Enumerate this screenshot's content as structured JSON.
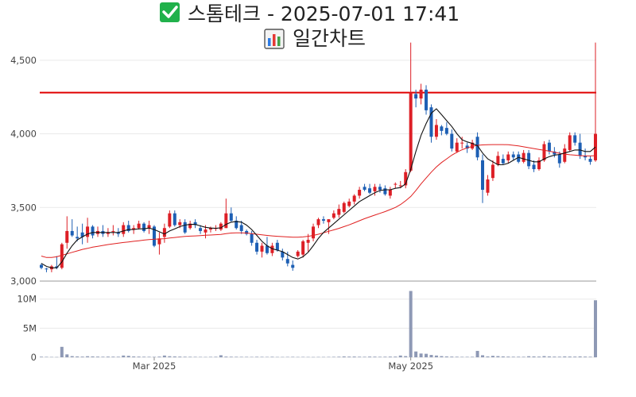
{
  "header": {
    "title_icon": "check-box-icon",
    "title": "스톰테크 - 2025-07-01 17:41",
    "subtitle_icon": "bar-chart-icon",
    "subtitle": "일간차트"
  },
  "colors": {
    "up": "#dd1f26",
    "down": "#1d5fb4",
    "ma_short": "#111111",
    "ma_long": "#e02020",
    "ref_line": "#e00000",
    "volume": "#8e99b5",
    "grid": "#e9e9e9",
    "title_check_bg": "#21b14b"
  },
  "chart_data": [
    {
      "type": "candlestick",
      "ylim": [
        3000,
        4650
      ],
      "yticks": [
        3000,
        3500,
        4000,
        4500
      ],
      "ytick_labels": [
        "3,000",
        "3,500",
        "4,000",
        "4,500"
      ],
      "reference_line": 4280,
      "candles": [
        [
          3110,
          3120,
          3080,
          3090
        ],
        [
          3085,
          3090,
          3060,
          3080
        ],
        [
          3080,
          3110,
          3060,
          3100
        ],
        [
          3100,
          3170,
          3080,
          3090
        ],
        [
          3090,
          3260,
          3080,
          3250
        ],
        [
          3260,
          3440,
          3220,
          3340
        ],
        [
          3340,
          3420,
          3300,
          3310
        ],
        [
          3300,
          3370,
          3270,
          3290
        ],
        [
          3330,
          3390,
          3250,
          3300
        ],
        [
          3300,
          3430,
          3260,
          3370
        ],
        [
          3370,
          3380,
          3290,
          3310
        ],
        [
          3320,
          3370,
          3300,
          3340
        ],
        [
          3340,
          3380,
          3300,
          3320
        ],
        [
          3320,
          3360,
          3300,
          3330
        ],
        [
          3340,
          3380,
          3310,
          3340
        ],
        [
          3330,
          3360,
          3300,
          3320
        ],
        [
          3320,
          3400,
          3300,
          3380
        ],
        [
          3380,
          3410,
          3330,
          3340
        ],
        [
          3350,
          3380,
          3320,
          3360
        ],
        [
          3360,
          3410,
          3350,
          3390
        ],
        [
          3390,
          3400,
          3330,
          3340
        ],
        [
          3360,
          3410,
          3320,
          3380
        ],
        [
          3370,
          3380,
          3230,
          3240
        ],
        [
          3250,
          3330,
          3180,
          3290
        ],
        [
          3300,
          3390,
          3260,
          3360
        ],
        [
          3370,
          3480,
          3360,
          3460
        ],
        [
          3460,
          3480,
          3370,
          3380
        ],
        [
          3380,
          3420,
          3360,
          3400
        ],
        [
          3400,
          3420,
          3320,
          3330
        ],
        [
          3360,
          3410,
          3350,
          3390
        ],
        [
          3400,
          3420,
          3360,
          3380
        ],
        [
          3360,
          3380,
          3320,
          3340
        ],
        [
          3330,
          3380,
          3290,
          3350
        ],
        [
          3350,
          3370,
          3330,
          3360
        ],
        [
          3360,
          3380,
          3340,
          3360
        ],
        [
          3350,
          3400,
          3340,
          3390
        ],
        [
          3360,
          3560,
          3360,
          3460
        ],
        [
          3460,
          3500,
          3400,
          3410
        ],
        [
          3410,
          3440,
          3350,
          3360
        ],
        [
          3380,
          3410,
          3320,
          3340
        ],
        [
          3340,
          3350,
          3310,
          3320
        ],
        [
          3320,
          3340,
          3240,
          3260
        ],
        [
          3260,
          3280,
          3180,
          3200
        ],
        [
          3200,
          3260,
          3160,
          3240
        ],
        [
          3240,
          3300,
          3180,
          3190
        ],
        [
          3190,
          3260,
          3170,
          3240
        ],
        [
          3260,
          3280,
          3200,
          3210
        ],
        [
          3200,
          3220,
          3140,
          3160
        ],
        [
          3150,
          3200,
          3100,
          3120
        ],
        [
          3110,
          3140,
          3070,
          3090
        ],
        [
          3170,
          3210,
          3160,
          3200
        ],
        [
          3180,
          3280,
          3160,
          3270
        ],
        [
          3260,
          3320,
          3200,
          3280
        ],
        [
          3290,
          3390,
          3270,
          3370
        ],
        [
          3380,
          3430,
          3360,
          3420
        ],
        [
          3420,
          3440,
          3390,
          3410
        ],
        [
          3400,
          3420,
          3320,
          3420
        ],
        [
          3430,
          3480,
          3420,
          3460
        ],
        [
          3450,
          3520,
          3430,
          3490
        ],
        [
          3470,
          3540,
          3460,
          3530
        ],
        [
          3510,
          3560,
          3500,
          3540
        ],
        [
          3540,
          3590,
          3520,
          3580
        ],
        [
          3580,
          3640,
          3560,
          3620
        ],
        [
          3640,
          3660,
          3610,
          3620
        ],
        [
          3630,
          3660,
          3590,
          3600
        ],
        [
          3610,
          3660,
          3580,
          3640
        ],
        [
          3640,
          3660,
          3600,
          3620
        ],
        [
          3630,
          3650,
          3580,
          3590
        ],
        [
          3580,
          3640,
          3560,
          3620
        ],
        [
          3660,
          3670,
          3630,
          3660
        ],
        [
          3650,
          3680,
          3630,
          3650
        ],
        [
          3650,
          3760,
          3630,
          3740
        ],
        [
          3750,
          4620,
          3740,
          4280
        ],
        [
          4270,
          4300,
          4180,
          4240
        ],
        [
          4240,
          4340,
          4200,
          4300
        ],
        [
          4300,
          4330,
          4130,
          4160
        ],
        [
          4180,
          4200,
          3940,
          3980
        ],
        [
          3980,
          4100,
          3960,
          4060
        ],
        [
          4050,
          4060,
          3990,
          4020
        ],
        [
          4040,
          4080,
          3990,
          4000
        ],
        [
          4000,
          4030,
          3880,
          3900
        ],
        [
          3880,
          3970,
          3870,
          3940
        ],
        [
          3940,
          3980,
          3900,
          3940
        ],
        [
          3920,
          3940,
          3870,
          3900
        ],
        [
          3900,
          3960,
          3890,
          3940
        ],
        [
          3980,
          4010,
          3820,
          3840
        ],
        [
          3820,
          3860,
          3530,
          3620
        ],
        [
          3600,
          3720,
          3580,
          3690
        ],
        [
          3700,
          3820,
          3680,
          3790
        ],
        [
          3790,
          3880,
          3780,
          3850
        ],
        [
          3830,
          3860,
          3790,
          3800
        ],
        [
          3820,
          3880,
          3800,
          3860
        ],
        [
          3860,
          3880,
          3820,
          3840
        ],
        [
          3860,
          3880,
          3800,
          3810
        ],
        [
          3810,
          3890,
          3800,
          3870
        ],
        [
          3870,
          3890,
          3760,
          3780
        ],
        [
          3790,
          3820,
          3740,
          3760
        ],
        [
          3760,
          3840,
          3750,
          3820
        ],
        [
          3820,
          3950,
          3810,
          3930
        ],
        [
          3940,
          3960,
          3860,
          3880
        ],
        [
          3880,
          3910,
          3840,
          3860
        ],
        [
          3860,
          3880,
          3770,
          3800
        ],
        [
          3810,
          3930,
          3800,
          3900
        ],
        [
          3890,
          4010,
          3880,
          3990
        ],
        [
          3990,
          4010,
          3920,
          3940
        ],
        [
          3940,
          4000,
          3830,
          3850
        ],
        [
          3850,
          3900,
          3820,
          3840
        ],
        [
          3830,
          3850,
          3790,
          3810
        ],
        [
          3820,
          4620,
          3810,
          4000
        ]
      ],
      "ma_short": [
        3120,
        3100,
        3090,
        3090,
        3130,
        3190,
        3240,
        3280,
        3300,
        3320,
        3330,
        3330,
        3330,
        3330,
        3330,
        3330,
        3340,
        3350,
        3350,
        3355,
        3355,
        3360,
        3350,
        3335,
        3320,
        3340,
        3355,
        3370,
        3380,
        3385,
        3385,
        3375,
        3365,
        3360,
        3358,
        3362,
        3385,
        3400,
        3405,
        3400,
        3380,
        3350,
        3310,
        3270,
        3240,
        3220,
        3210,
        3200,
        3180,
        3160,
        3150,
        3165,
        3195,
        3240,
        3290,
        3330,
        3360,
        3390,
        3420,
        3450,
        3480,
        3510,
        3540,
        3560,
        3580,
        3600,
        3615,
        3620,
        3620,
        3630,
        3635,
        3660,
        3760,
        3880,
        3990,
        4070,
        4140,
        4170,
        4130,
        4090,
        4050,
        4000,
        3960,
        3945,
        3935,
        3920,
        3870,
        3830,
        3810,
        3790,
        3790,
        3800,
        3820,
        3840,
        3830,
        3820,
        3810,
        3810,
        3830,
        3845,
        3855,
        3860,
        3870,
        3880,
        3890,
        3890,
        3880,
        3880,
        3910
      ],
      "ma_long": [
        3170,
        3160,
        3160,
        3165,
        3175,
        3185,
        3195,
        3205,
        3215,
        3222,
        3230,
        3236,
        3242,
        3248,
        3253,
        3258,
        3262,
        3266,
        3270,
        3274,
        3278,
        3282,
        3284,
        3286,
        3288,
        3292,
        3296,
        3300,
        3303,
        3305,
        3307,
        3309,
        3311,
        3313,
        3315,
        3317,
        3322,
        3326,
        3328,
        3328,
        3326,
        3322,
        3318,
        3314,
        3310,
        3307,
        3304,
        3302,
        3300,
        3298,
        3298,
        3300,
        3304,
        3310,
        3318,
        3328,
        3338,
        3348,
        3358,
        3370,
        3382,
        3396,
        3410,
        3424,
        3436,
        3448,
        3460,
        3472,
        3486,
        3500,
        3520,
        3545,
        3575,
        3615,
        3660,
        3700,
        3740,
        3775,
        3805,
        3830,
        3855,
        3875,
        3892,
        3905,
        3915,
        3922,
        3925,
        3926,
        3927,
        3927,
        3927,
        3926,
        3922,
        3918,
        3912,
        3906,
        3900,
        3894,
        3888,
        3882,
        3875,
        3868,
        3862,
        3858,
        3855,
        3852,
        3850,
        3850,
        3852
      ]
    },
    {
      "type": "bar",
      "ylim": [
        0,
        11600000
      ],
      "yticks": [
        0,
        5000000,
        10000000
      ],
      "ytick_labels": [
        "0",
        "5M",
        "10M"
      ],
      "x_tick_labels": [
        "Mar 2025",
        "May 2025"
      ],
      "x_tick_index": [
        22,
        72
      ],
      "values": [
        100000,
        80000,
        60000,
        50000,
        1800000,
        500000,
        200000,
        150000,
        120000,
        180000,
        150000,
        120000,
        100000,
        120000,
        110000,
        100000,
        300000,
        250000,
        150000,
        120000,
        100000,
        90000,
        80000,
        120000,
        300000,
        180000,
        150000,
        120000,
        100000,
        90000,
        80000,
        70000,
        60000,
        80000,
        90000,
        350000,
        120000,
        100000,
        90000,
        80000,
        80000,
        70000,
        90000,
        80000,
        70000,
        90000,
        60000,
        60000,
        70000,
        80000,
        60000,
        70000,
        60000,
        50000,
        60000,
        60000,
        70000,
        80000,
        100000,
        150000,
        120000,
        130000,
        100000,
        90000,
        120000,
        110000,
        90000,
        100000,
        120000,
        120000,
        300000,
        200000,
        11400000,
        1000000,
        650000,
        600000,
        400000,
        300000,
        200000,
        150000,
        120000,
        100000,
        80000,
        80000,
        90000,
        1100000,
        350000,
        150000,
        250000,
        200000,
        150000,
        120000,
        100000,
        100000,
        90000,
        180000,
        150000,
        120000,
        200000,
        150000,
        120000,
        110000,
        150000,
        130000,
        120000,
        150000,
        120000,
        100000,
        9800000
      ]
    }
  ]
}
